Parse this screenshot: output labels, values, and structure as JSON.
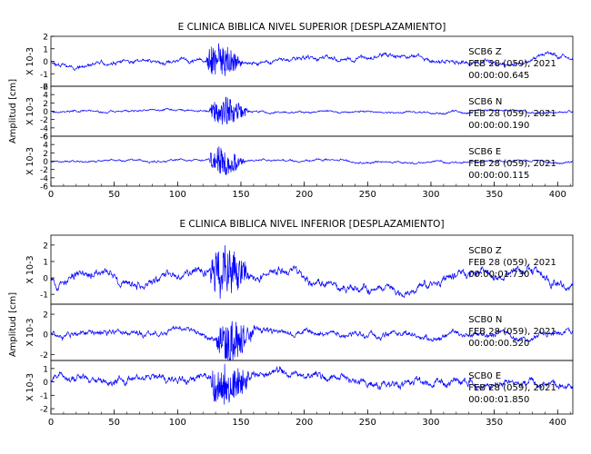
{
  "chart_data": [
    {
      "type": "line",
      "title": "E CLINICA BIBLICA NIVEL SUPERIOR [DESPLAZAMIENTO]",
      "xlabel": "",
      "ylabel": "Amplitud [cm]",
      "xlim": [
        0,
        412
      ],
      "xticks": [
        "0",
        "50",
        "100",
        "150",
        "200",
        "250",
        "300",
        "350",
        "400"
      ],
      "series_color": "#0000ff",
      "panels": [
        {
          "scale_label": "X 10-3",
          "ylim": [
            -2,
            2
          ],
          "yticks": [
            "2",
            "1",
            "0",
            "-1",
            "-2"
          ],
          "station": "SCB6",
          "component": "Z",
          "date": "FEB 28 (059), 2021",
          "time": "00:00:00.645",
          "noise": 0.35,
          "event_amp": 1.9,
          "event_start": 122,
          "event_end": 170,
          "seed": 11
        },
        {
          "scale_label": "X 10-3",
          "ylim": [
            -6,
            6
          ],
          "yticks": [
            "6",
            "4",
            "2",
            "0",
            "-2",
            "-4",
            "-6"
          ],
          "station": "SCB6",
          "component": "N",
          "date": "FEB 28 (059), 2021",
          "time": "00:00:00.190",
          "noise": 0.5,
          "event_amp": 5.0,
          "event_start": 125,
          "event_end": 175,
          "seed": 23
        },
        {
          "scale_label": "X 10-3",
          "ylim": [
            -6,
            6
          ],
          "yticks": [
            "6",
            "4",
            "2",
            "0",
            "-2",
            "-4",
            "-6"
          ],
          "station": "SCB6",
          "component": "E",
          "date": "FEB 28 (059), 2021",
          "time": "00:00:00.115",
          "noise": 0.5,
          "event_amp": 4.8,
          "event_start": 125,
          "event_end": 170,
          "seed": 37
        }
      ]
    },
    {
      "type": "line",
      "title": "E CLINICA BIBLICA NIVEL INFERIOR [DESPLAZAMIENTO]",
      "xlabel": "",
      "ylabel": "Amplitud [cm]",
      "xlim": [
        0,
        412
      ],
      "xticks": [
        "0",
        "50",
        "100",
        "150",
        "200",
        "250",
        "300",
        "350",
        "400"
      ],
      "series_color": "#0000ff",
      "panels": [
        {
          "scale_label": "X 10-3",
          "ylim": [
            -1.6,
            2.6
          ],
          "yticks": [
            "2",
            "1",
            "0",
            "-1"
          ],
          "station": "SCB0",
          "component": "Z",
          "date": "FEB 28 (059), 2021",
          "time": "00:00:01.730",
          "noise": 0.55,
          "event_amp": 2.3,
          "event_start": 125,
          "event_end": 175,
          "seed": 53
        },
        {
          "scale_label": "X 10-3",
          "ylim": [
            -2.6,
            3.0
          ],
          "yticks": [
            "2",
            "0",
            "-2"
          ],
          "station": "SCB0",
          "component": "N",
          "date": "FEB 28 (059), 2021",
          "time": "00:00:00.520",
          "noise": 0.6,
          "event_amp": 2.8,
          "event_start": 130,
          "event_end": 180,
          "seed": 71
        },
        {
          "scale_label": "X 10-3",
          "ylim": [
            -2.4,
            1.6
          ],
          "yticks": [
            "1",
            "0",
            "-1",
            "-2"
          ],
          "station": "SCB0",
          "component": "E",
          "date": "FEB 28 (059), 2021",
          "time": "00:00:01.850",
          "noise": 0.6,
          "event_amp": 2.0,
          "event_start": 125,
          "event_end": 180,
          "seed": 89
        }
      ]
    }
  ]
}
